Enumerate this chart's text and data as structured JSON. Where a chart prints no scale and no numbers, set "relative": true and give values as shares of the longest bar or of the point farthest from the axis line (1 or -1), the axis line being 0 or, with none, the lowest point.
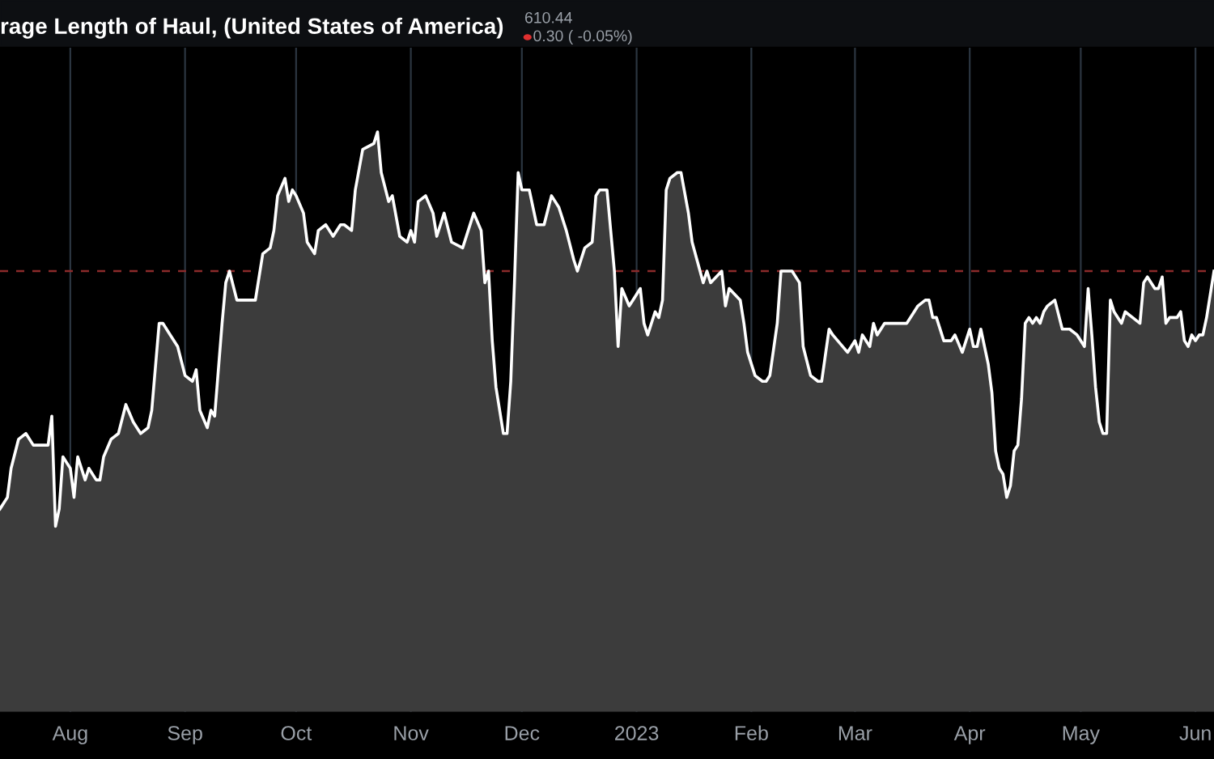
{
  "chart_data": {
    "type": "area",
    "title": "rage Length of Haul, (United States of America)",
    "annotations": [
      "610.44",
      "0.30 ( -0.05%)"
    ],
    "relative": true,
    "grid": "x",
    "legend": false,
    "xlim": [
      "2022-07-13",
      "2023-06-06"
    ],
    "xticks": [
      {
        "value": "2022-08-01",
        "label": "Aug"
      },
      {
        "value": "2022-09-01",
        "label": "Sep"
      },
      {
        "value": "2022-10-01",
        "label": "Oct"
      },
      {
        "value": "2022-11-01",
        "label": "Nov"
      },
      {
        "value": "2022-12-01",
        "label": "Dec"
      },
      {
        "value": "2023-01-01",
        "label": "2023"
      },
      {
        "value": "2023-02-01",
        "label": "Feb"
      },
      {
        "value": "2023-03-01",
        "label": "Mar"
      },
      {
        "value": "2023-04-01",
        "label": "Apr"
      },
      {
        "value": "2023-05-01",
        "label": "May"
      },
      {
        "value": "2023-06-01",
        "label": "Jun"
      }
    ],
    "ref_lines": [
      {
        "axis": "y",
        "value": 0.76,
        "label": null,
        "color": "#8b2a2a",
        "line_style": "dashed"
      }
    ],
    "series": [
      {
        "color": "#ffffff",
        "x": [
          "2022-07-13",
          "2022-07-15",
          "2022-07-16",
          "2022-07-18",
          "2022-07-20",
          "2022-07-22",
          "2022-07-25",
          "2022-07-26",
          "2022-07-27",
          "2022-07-28",
          "2022-07-29",
          "2022-07-30",
          "2022-07-31",
          "2022-08-01",
          "2022-08-02",
          "2022-08-03",
          "2022-08-05",
          "2022-08-06",
          "2022-08-08",
          "2022-08-09",
          "2022-08-10",
          "2022-08-12",
          "2022-08-14",
          "2022-08-16",
          "2022-08-18",
          "2022-08-20",
          "2022-08-22",
          "2022-08-23",
          "2022-08-25",
          "2022-08-26",
          "2022-08-28",
          "2022-08-30",
          "2022-09-01",
          "2022-09-03",
          "2022-09-04",
          "2022-09-05",
          "2022-09-07",
          "2022-09-08",
          "2022-09-09",
          "2022-09-11",
          "2022-09-12",
          "2022-09-13",
          "2022-09-15",
          "2022-09-18",
          "2022-09-20",
          "2022-09-22",
          "2022-09-24",
          "2022-09-25",
          "2022-09-26",
          "2022-09-28",
          "2022-09-29",
          "2022-09-30",
          "2022-10-01",
          "2022-10-03",
          "2022-10-04",
          "2022-10-06",
          "2022-10-07",
          "2022-10-09",
          "2022-10-11",
          "2022-10-13",
          "2022-10-14",
          "2022-10-16",
          "2022-10-17",
          "2022-10-19",
          "2022-10-22",
          "2022-10-23",
          "2022-10-24",
          "2022-10-26",
          "2022-10-27",
          "2022-10-29",
          "2022-10-31",
          "2022-11-01",
          "2022-11-02",
          "2022-11-03",
          "2022-11-05",
          "2022-11-07",
          "2022-11-08",
          "2022-11-10",
          "2022-11-12",
          "2022-11-15",
          "2022-11-18",
          "2022-11-20",
          "2022-11-21",
          "2022-11-22",
          "2022-11-23",
          "2022-11-24",
          "2022-11-26",
          "2022-11-27",
          "2022-11-28",
          "2022-11-29",
          "2022-11-30",
          "2022-12-01",
          "2022-12-03",
          "2022-12-05",
          "2022-12-07",
          "2022-12-09",
          "2022-12-11",
          "2022-12-13",
          "2022-12-15",
          "2022-12-16",
          "2022-12-18",
          "2022-12-20",
          "2022-12-21",
          "2022-12-22",
          "2022-12-24",
          "2022-12-25",
          "2022-12-26",
          "2022-12-27",
          "2022-12-28",
          "2022-12-30",
          "2022-12-31",
          "2023-01-02",
          "2023-01-03",
          "2023-01-04",
          "2023-01-06",
          "2023-01-07",
          "2023-01-08",
          "2023-01-09",
          "2023-01-10",
          "2023-01-12",
          "2023-01-13",
          "2023-01-15",
          "2023-01-16",
          "2023-01-19",
          "2023-01-20",
          "2023-01-21",
          "2023-01-24",
          "2023-01-25",
          "2023-01-26",
          "2023-01-29",
          "2023-01-30",
          "2023-01-31",
          "2023-02-02",
          "2023-02-04",
          "2023-02-05",
          "2023-02-06",
          "2023-02-08",
          "2023-02-09",
          "2023-02-10",
          "2023-02-12",
          "2023-02-14",
          "2023-02-15",
          "2023-02-17",
          "2023-02-19",
          "2023-02-20",
          "2023-02-22",
          "2023-02-23",
          "2023-02-27",
          "2023-03-01",
          "2023-03-02",
          "2023-03-03",
          "2023-03-05",
          "2023-03-06",
          "2023-03-07",
          "2023-03-09",
          "2023-03-13",
          "2023-03-15",
          "2023-03-17",
          "2023-03-18",
          "2023-03-20",
          "2023-03-21",
          "2023-03-22",
          "2023-03-23",
          "2023-03-25",
          "2023-03-27",
          "2023-03-28",
          "2023-03-30",
          "2023-03-31",
          "2023-04-01",
          "2023-04-02",
          "2023-04-03",
          "2023-04-04",
          "2023-04-05",
          "2023-04-06",
          "2023-04-07",
          "2023-04-08",
          "2023-04-09",
          "2023-04-10",
          "2023-04-11",
          "2023-04-12",
          "2023-04-13",
          "2023-04-14",
          "2023-04-15",
          "2023-04-16",
          "2023-04-17",
          "2023-04-18",
          "2023-04-19",
          "2023-04-20",
          "2023-04-21",
          "2023-04-22",
          "2023-04-24",
          "2023-04-26",
          "2023-04-28",
          "2023-04-30",
          "2023-05-02",
          "2023-05-03",
          "2023-05-04",
          "2023-05-05",
          "2023-05-06",
          "2023-05-07",
          "2023-05-08",
          "2023-05-09",
          "2023-05-10",
          "2023-05-12",
          "2023-05-13",
          "2023-05-15",
          "2023-05-17",
          "2023-05-18",
          "2023-05-19",
          "2023-05-21",
          "2023-05-22",
          "2023-05-23",
          "2023-05-24",
          "2023-05-25",
          "2023-05-27",
          "2023-05-28",
          "2023-05-29",
          "2023-05-30",
          "2023-05-31",
          "2023-06-01",
          "2023-06-02",
          "2023-06-03",
          "2023-06-04",
          "2023-06-06"
        ],
        "values": [
          0.35,
          0.37,
          0.42,
          0.47,
          0.48,
          0.46,
          0.46,
          0.46,
          0.51,
          0.32,
          0.35,
          0.44,
          0.43,
          0.42,
          0.37,
          0.44,
          0.4,
          0.42,
          0.4,
          0.4,
          0.44,
          0.47,
          0.48,
          0.53,
          0.5,
          0.48,
          0.49,
          0.52,
          0.67,
          0.67,
          0.65,
          0.63,
          0.58,
          0.57,
          0.59,
          0.52,
          0.49,
          0.52,
          0.51,
          0.67,
          0.74,
          0.76,
          0.71,
          0.71,
          0.71,
          0.79,
          0.8,
          0.83,
          0.89,
          0.92,
          0.88,
          0.9,
          0.89,
          0.86,
          0.81,
          0.79,
          0.83,
          0.84,
          0.82,
          0.84,
          0.84,
          0.83,
          0.9,
          0.97,
          0.98,
          1.0,
          0.93,
          0.88,
          0.89,
          0.82,
          0.81,
          0.83,
          0.81,
          0.88,
          0.89,
          0.86,
          0.82,
          0.86,
          0.81,
          0.8,
          0.86,
          0.83,
          0.74,
          0.76,
          0.64,
          0.56,
          0.48,
          0.48,
          0.57,
          0.74,
          0.93,
          0.9,
          0.9,
          0.84,
          0.84,
          0.89,
          0.87,
          0.83,
          0.78,
          0.76,
          0.8,
          0.81,
          0.89,
          0.9,
          0.9,
          0.83,
          0.76,
          0.63,
          0.73,
          0.7,
          0.71,
          0.73,
          0.67,
          0.65,
          0.69,
          0.68,
          0.71,
          0.9,
          0.92,
          0.93,
          0.93,
          0.86,
          0.81,
          0.74,
          0.76,
          0.74,
          0.76,
          0.7,
          0.73,
          0.71,
          0.67,
          0.62,
          0.58,
          0.57,
          0.57,
          0.58,
          0.67,
          0.76,
          0.76,
          0.76,
          0.74,
          0.63,
          0.58,
          0.57,
          0.57,
          0.66,
          0.65,
          0.62,
          0.64,
          0.62,
          0.65,
          0.63,
          0.67,
          0.65,
          0.67,
          0.67,
          0.67,
          0.69,
          0.7,
          0.71,
          0.71,
          0.68,
          0.68,
          0.64,
          0.64,
          0.65,
          0.62,
          0.64,
          0.66,
          0.63,
          0.63,
          0.66,
          0.63,
          0.6,
          0.55,
          0.45,
          0.42,
          0.41,
          0.37,
          0.39,
          0.45,
          0.46,
          0.54,
          0.67,
          0.68,
          0.67,
          0.68,
          0.67,
          0.69,
          0.7,
          0.71,
          0.66,
          0.66,
          0.65,
          0.63,
          0.73,
          0.65,
          0.56,
          0.5,
          0.48,
          0.48,
          0.71,
          0.69,
          0.67,
          0.69,
          0.68,
          0.67,
          0.74,
          0.75,
          0.73,
          0.73,
          0.75,
          0.67,
          0.68,
          0.68,
          0.69,
          0.64,
          0.63,
          0.65,
          0.64,
          0.65,
          0.65,
          0.68,
          0.76
        ]
      }
    ]
  }
}
